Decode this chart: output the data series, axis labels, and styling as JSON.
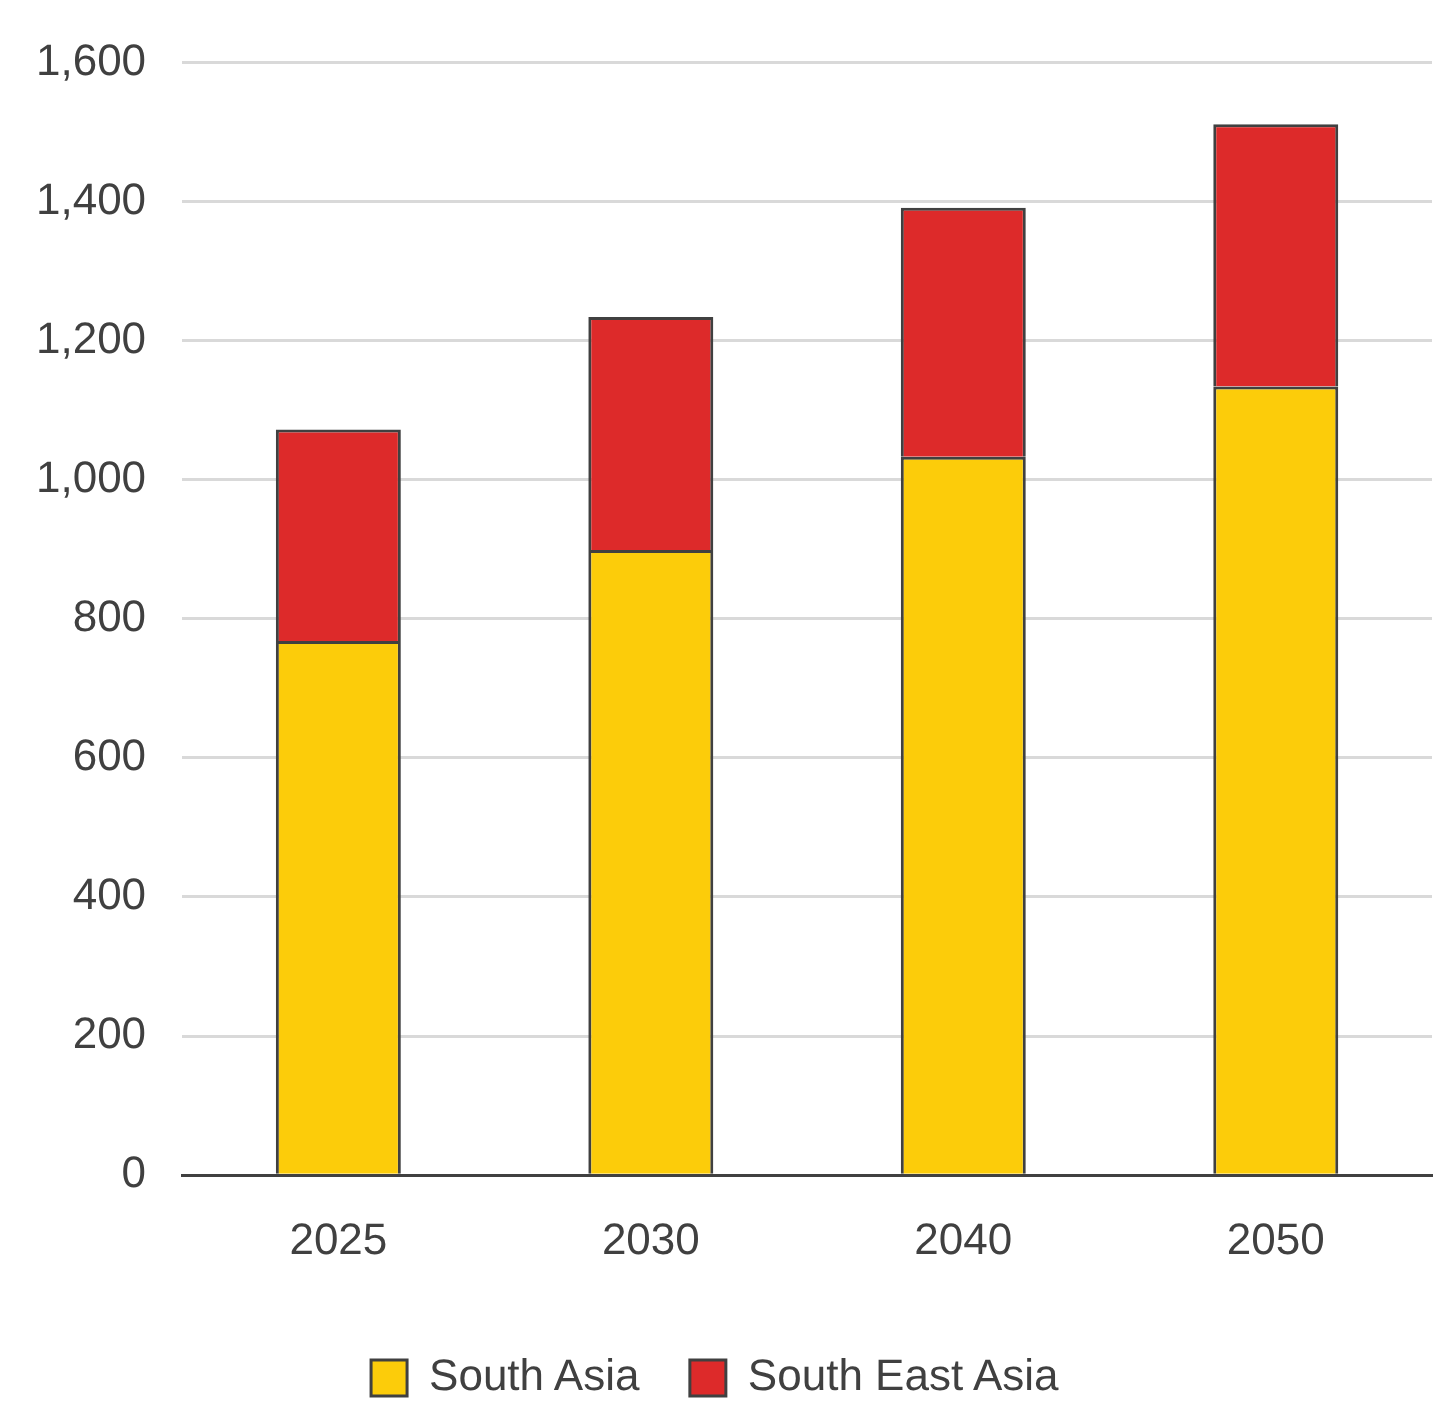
{
  "chart_data": {
    "type": "bar",
    "categories": [
      "2025",
      "2030",
      "2040",
      "2050"
    ],
    "stacked": true,
    "series": [
      {
        "name": "South Asia",
        "color": "#fccc0a",
        "values": [
          768,
          899,
          1033,
          1134
        ]
      },
      {
        "name": "South East Asia",
        "color": "#dd2a2a",
        "values": [
          304,
          335,
          358,
          377
        ]
      }
    ],
    "ylim": [
      0,
      1600
    ],
    "yticks": [
      0,
      200,
      400,
      600,
      800,
      {
        "value": 1000,
        "label": "1,000"
      },
      {
        "value": 1200,
        "label": "1,200"
      },
      {
        "value": 1400,
        "label": "1,400"
      },
      {
        "value": 1600,
        "label": "1,600"
      }
    ],
    "grid": "y",
    "legend": "bottom"
  }
}
